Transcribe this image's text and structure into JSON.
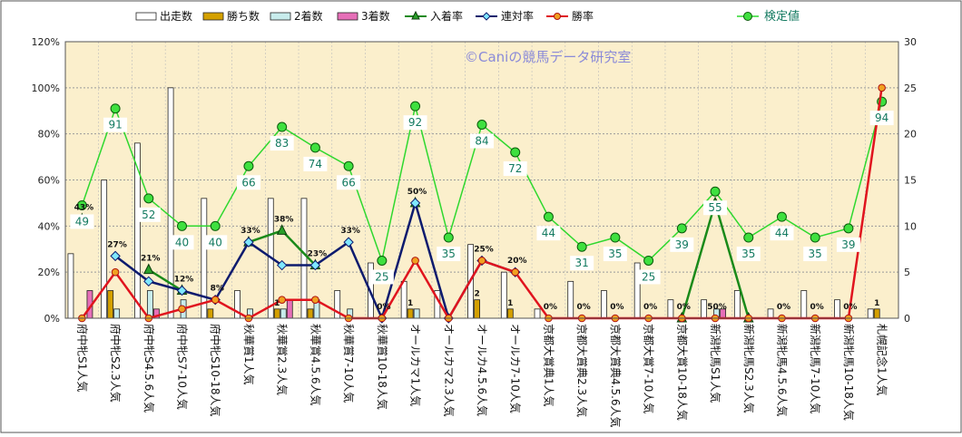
{
  "watermark": "©Caniの競馬データ研究室",
  "chart_data": {
    "type": "bar+line",
    "categories": [
      "府中牝S1人気",
      "府中牝S2.3人気",
      "府中牝S4.5.6人気",
      "府中牝S7-10人気",
      "府中牝S10-18人気",
      "秋華賞1人気",
      "秋華賞2.3人気",
      "秋華賞4.5.6人気",
      "秋華賞7-10人気",
      "秋華賞10-18人気",
      "オールカマ1人気",
      "オールカマ2.3人気",
      "オールカ4.5.6人気",
      "オールカ7-10人気",
      "京都大賞典1人気",
      "京都大賞典2.3人気",
      "京都大賞典4.5.6人気",
      "京都大賞7-10人気",
      "京都大賞10-18人気",
      "新潟牝馬S1人気",
      "新潟牝馬S2.3人気",
      "新潟牝馬4.5.6人気",
      "新潟牝馬7-10人気",
      "新潟牝馬10-18人気",
      "札幌記念1人気"
    ],
    "left_ticks": [
      "0%",
      "20%",
      "40%",
      "60%",
      "80%",
      "100%",
      "120%"
    ],
    "right_ticks": [
      "0",
      "5",
      "10",
      "15",
      "20",
      "25",
      "30"
    ],
    "left_ylim": [
      0,
      120
    ],
    "right_ylim": [
      0,
      30
    ],
    "bar_series": [
      {
        "name": "出走数",
        "color": "#ffffff",
        "values": [
          7,
          15,
          19,
          25,
          13,
          3,
          13,
          13,
          3,
          6,
          4,
          3,
          8,
          5,
          1,
          4,
          3,
          6,
          2,
          2,
          3,
          1,
          3,
          2,
          1
        ]
      },
      {
        "name": "勝ち数",
        "color": "#d4a000",
        "values": [
          0,
          3,
          0,
          0,
          1,
          0,
          1,
          1,
          0,
          0,
          1,
          0,
          2,
          1,
          0,
          0,
          0,
          0,
          0,
          0,
          0,
          0,
          0,
          0,
          1
        ]
      },
      {
        "name": "2着数",
        "color": "#c8ecec",
        "values": [
          0,
          1,
          3,
          2,
          0,
          1,
          1,
          2,
          1,
          0,
          1,
          0,
          0,
          0,
          0,
          0,
          0,
          0,
          0,
          1,
          0,
          0,
          0,
          0,
          0
        ]
      },
      {
        "name": "3着数",
        "color": "#e66fb8",
        "values": [
          3,
          0,
          1,
          0,
          0,
          0,
          2,
          0,
          0,
          0,
          0,
          0,
          0,
          0,
          0,
          0,
          0,
          0,
          0,
          1,
          0,
          0,
          0,
          0,
          0
        ]
      }
    ],
    "line_series": [
      {
        "name": "入着率",
        "color": "#1a8a1a",
        "marker": "triangle",
        "values": [
          43,
          null,
          21,
          12,
          null,
          33,
          38,
          23,
          null,
          null,
          50,
          null,
          null,
          null,
          null,
          null,
          null,
          null,
          0,
          50,
          0,
          null,
          null,
          null,
          null
        ],
        "labels": [
          "43%",
          "",
          "21%",
          "12%",
          "",
          "33%",
          "38%",
          "23%",
          "",
          "",
          "",
          "",
          "",
          "",
          "",
          "",
          "",
          "",
          "",
          "",
          "",
          "",
          "",
          "",
          ""
        ]
      },
      {
        "name": "連対率",
        "color": "#0d1b6e",
        "marker": "diamond",
        "values": [
          null,
          27,
          16,
          12,
          8,
          33,
          23,
          23,
          33,
          0,
          50,
          0,
          25,
          20,
          null,
          null,
          null,
          null,
          null,
          null,
          null,
          null,
          null,
          null,
          null
        ],
        "labels": [
          "",
          "27%",
          "",
          "",
          "8%",
          "",
          "",
          "",
          "33%",
          "0%",
          "50%",
          "",
          "25%",
          "20%",
          "0%",
          "0%",
          "0%",
          "0%",
          "0%",
          "50%",
          "",
          "0%",
          "0%",
          "0%",
          ""
        ]
      },
      {
        "name": "勝率",
        "color": "#e0141e",
        "marker": "circle",
        "values": [
          0,
          20,
          0,
          4,
          8,
          0,
          8,
          8,
          0,
          0,
          25,
          0,
          25,
          20,
          0,
          0,
          0,
          0,
          0,
          0,
          0,
          0,
          0,
          0,
          100
        ],
        "labels": []
      }
    ],
    "score_series": {
      "name": "検定値",
      "color": "#2ed82e",
      "values": [
        49,
        91,
        52,
        40,
        40,
        66,
        83,
        74,
        66,
        25,
        92,
        35,
        84,
        72,
        44,
        31,
        35,
        25,
        39,
        55,
        35,
        44,
        35,
        39,
        94
      ]
    },
    "bar_count_labels": [
      "",
      "",
      "",
      "",
      "",
      "",
      "1",
      "",
      "",
      "",
      "1",
      "",
      "2",
      "1",
      "",
      "",
      "",
      "",
      "",
      "",
      "",
      "",
      "",
      "",
      "1"
    ],
    "legend_top_left": [
      "出走数",
      "勝ち数",
      "2着数",
      "3着数",
      "入着率",
      "連対率",
      "勝率"
    ],
    "legend_top_right": [
      "検定値"
    ],
    "grid": true
  }
}
